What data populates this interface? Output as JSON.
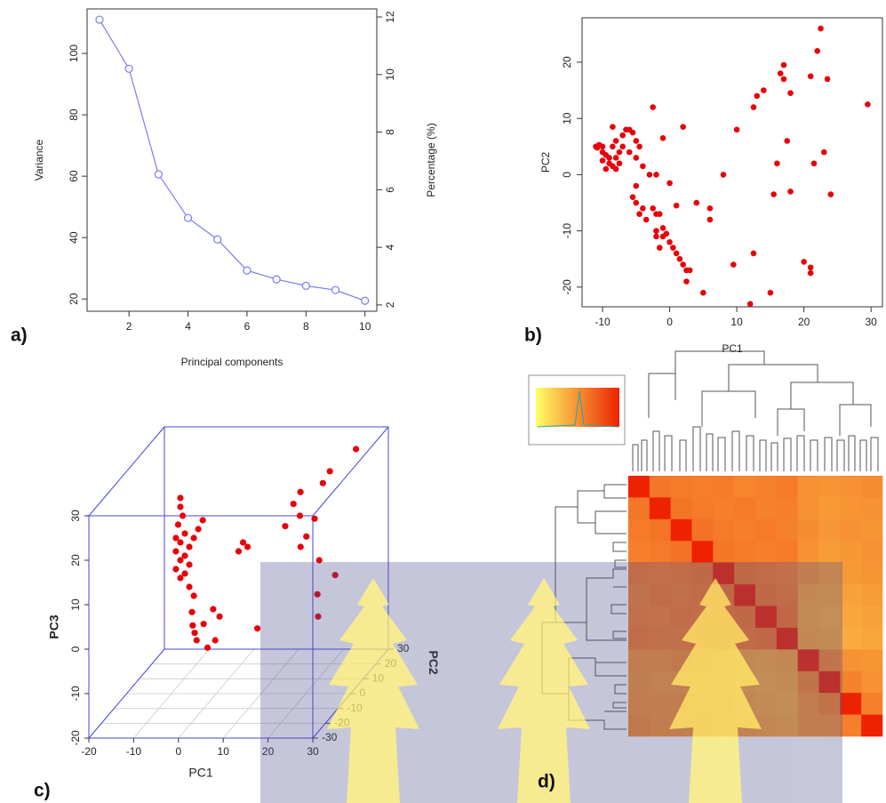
{
  "chart_data": [
    {
      "type": "line",
      "label": "a)",
      "xlabel": "Principal components",
      "ylabel": "Variance",
      "y2label": "Percentage (%)",
      "x": [
        1,
        2,
        3,
        4,
        5,
        6,
        7,
        8,
        9,
        10
      ],
      "series": [
        {
          "color": "#7b7bf0",
          "values": [
            111,
            95,
            60.6,
            46.4,
            39.4,
            29.3,
            26.4,
            24.3,
            22.9,
            19.4
          ]
        }
      ],
      "xlim": [
        0.58,
        10.4
      ],
      "xticks": [
        2,
        4,
        6,
        8,
        10
      ],
      "ylim": [
        16,
        114.5
      ],
      "yticks": [
        20,
        40,
        60,
        80,
        100
      ],
      "y2lim": [
        1.78,
        12.28
      ],
      "y2ticks": [
        2,
        4,
        6,
        8,
        10,
        12
      ]
    },
    {
      "type": "scatter",
      "label": "b)",
      "xlabel": "PC1",
      "ylabel": "PC2",
      "color": "#e8000b",
      "x": [
        -11,
        -10.5,
        -10,
        -10.8,
        -10,
        -9.5,
        -9,
        -10,
        -9,
        -8.5,
        -8,
        -9.5,
        -8,
        -7.5,
        -7,
        -8,
        -7,
        -6.5,
        -6,
        -5.5,
        -5,
        -4.5,
        -6,
        -5,
        -4,
        -8.5,
        -7.5,
        -8.5,
        -3,
        -2,
        -1,
        -2.5,
        2,
        0,
        -5,
        -5.5,
        -5,
        -4,
        -4.5,
        -3.5,
        -2.5,
        -2,
        -1.5,
        -2,
        -1,
        -1,
        -2,
        -1.5,
        -0.5,
        0,
        0.5,
        1,
        1.5,
        2,
        2.5,
        3,
        2.5,
        5,
        1,
        4,
        6,
        6,
        8,
        9.5,
        10,
        12,
        12.5,
        12.5,
        13,
        14,
        15,
        15.5,
        16,
        16.5,
        17,
        17,
        17.5,
        18,
        18,
        20,
        21,
        21,
        21,
        21.5,
        22,
        22.5,
        23,
        23.5,
        24,
        29.5
      ],
      "y": [
        5,
        5.3,
        5,
        4.8,
        4,
        3.5,
        3,
        2.5,
        2,
        1.5,
        1,
        1,
        3,
        4,
        5,
        6,
        7,
        8,
        8,
        7.5,
        6,
        5,
        4,
        3,
        1.5,
        8.5,
        2,
        5,
        0,
        0,
        6.5,
        12,
        8.5,
        -1.5,
        -2,
        -4,
        -5,
        -6,
        -7,
        -8,
        -6,
        -7,
        -7,
        -10,
        -9.5,
        -11,
        -11,
        -13,
        -10.5,
        -12,
        -13,
        -14,
        -15,
        -16,
        -17,
        -17,
        -19,
        -21,
        -5.5,
        -5,
        -6,
        -8,
        0,
        -16,
        8,
        -23,
        -14,
        12,
        14,
        15,
        -21,
        -3.5,
        2,
        18,
        19.5,
        17,
        6,
        14.5,
        -3,
        -15.5,
        -16.5,
        -17.5,
        17.5,
        2,
        22,
        26,
        4,
        17,
        -3.5,
        12.5
      ],
      "xlim": [
        -13.05,
        31.7
      ],
      "xticks": [
        -10,
        0,
        10,
        20,
        30
      ],
      "ylim": [
        -23.5,
        27.9
      ],
      "yticks": [
        -20,
        -10,
        0,
        10,
        20
      ]
    },
    {
      "type": "scatter3d",
      "label": "c)",
      "xlabel": "PC1",
      "ylabel": "PC2",
      "zlabel": "PC3",
      "color": "#e8000b",
      "box_color": "#4444dd",
      "x": [
        -8,
        -8,
        -7.5,
        -8.5,
        -7,
        -8,
        -9,
        -7,
        -8,
        -6,
        -9,
        -7,
        -8,
        -6,
        -5,
        -4,
        -3,
        -9,
        -6,
        -5,
        -4,
        -3,
        -2,
        -1,
        0,
        1,
        2,
        3,
        4,
        5,
        6,
        7,
        14,
        15,
        16,
        17,
        18,
        19,
        20,
        21,
        22,
        23,
        24,
        25,
        26,
        27,
        12
      ],
      "y": [
        0,
        0,
        0,
        0,
        0,
        0,
        0,
        0,
        0,
        0,
        0,
        0,
        0,
        0,
        0,
        0,
        0,
        0,
        0,
        0,
        -5,
        -8,
        -10,
        -12,
        -10,
        -6,
        -14,
        -8,
        -15,
        0,
        0,
        0,
        5,
        8,
        10,
        6,
        3,
        4,
        7,
        10,
        12,
        0,
        -5,
        -8,
        2,
        15,
        -10
      ],
      "z": [
        24,
        22,
        20,
        18,
        16,
        14,
        12,
        11,
        10,
        9,
        8,
        7,
        6,
        13,
        15,
        17,
        19,
        15,
        4,
        2,
        0,
        -2,
        -3,
        -4,
        -1,
        1,
        -5,
        0,
        -3,
        12,
        14,
        13,
        16,
        20,
        22,
        18,
        12,
        14,
        17,
        24,
        26,
        10,
        4,
        0,
        6,
        30,
        -2
      ],
      "xlim": [
        -20,
        30
      ],
      "xticks": [
        -20,
        -10,
        0,
        10,
        20,
        30
      ],
      "ylim": [
        -30,
        30
      ],
      "yticks": [
        -30,
        -20,
        -10,
        0,
        10,
        20,
        30
      ],
      "zlim": [
        -20,
        30
      ],
      "zticks": [
        -20,
        -10,
        0,
        10,
        20,
        30
      ]
    },
    {
      "type": "heatmap",
      "label": "d)",
      "colormap": [
        "#ffff66",
        "#ee2200"
      ],
      "values": [
        [
          1.0,
          0.62,
          0.6,
          0.58,
          0.6,
          0.55,
          0.57,
          0.6,
          0.5,
          0.48,
          0.5,
          0.52
        ],
        [
          0.62,
          1.0,
          0.63,
          0.6,
          0.58,
          0.6,
          0.56,
          0.58,
          0.5,
          0.46,
          0.48,
          0.5
        ],
        [
          0.6,
          0.63,
          1.0,
          0.64,
          0.6,
          0.58,
          0.6,
          0.57,
          0.52,
          0.47,
          0.5,
          0.48
        ],
        [
          0.58,
          0.6,
          0.64,
          1.0,
          0.62,
          0.6,
          0.58,
          0.6,
          0.5,
          0.45,
          0.47,
          0.5
        ],
        [
          0.6,
          0.58,
          0.6,
          0.62,
          1.0,
          0.63,
          0.6,
          0.58,
          0.48,
          0.44,
          0.46,
          0.48
        ],
        [
          0.55,
          0.6,
          0.58,
          0.6,
          0.63,
          1.0,
          0.62,
          0.6,
          0.42,
          0.4,
          0.42,
          0.45
        ],
        [
          0.57,
          0.56,
          0.6,
          0.58,
          0.6,
          0.62,
          1.0,
          0.64,
          0.4,
          0.38,
          0.4,
          0.42
        ],
        [
          0.6,
          0.58,
          0.57,
          0.6,
          0.58,
          0.6,
          0.64,
          1.0,
          0.42,
          0.4,
          0.38,
          0.4
        ],
        [
          0.5,
          0.5,
          0.52,
          0.5,
          0.48,
          0.42,
          0.4,
          0.42,
          1.0,
          0.55,
          0.5,
          0.48
        ],
        [
          0.48,
          0.46,
          0.47,
          0.45,
          0.44,
          0.4,
          0.38,
          0.4,
          0.55,
          1.0,
          0.56,
          0.5
        ],
        [
          0.5,
          0.48,
          0.5,
          0.47,
          0.46,
          0.42,
          0.4,
          0.38,
          0.5,
          0.56,
          1.0,
          0.58
        ],
        [
          0.52,
          0.5,
          0.48,
          0.5,
          0.48,
          0.45,
          0.42,
          0.4,
          0.48,
          0.5,
          0.58,
          1.0
        ]
      ]
    }
  ]
}
